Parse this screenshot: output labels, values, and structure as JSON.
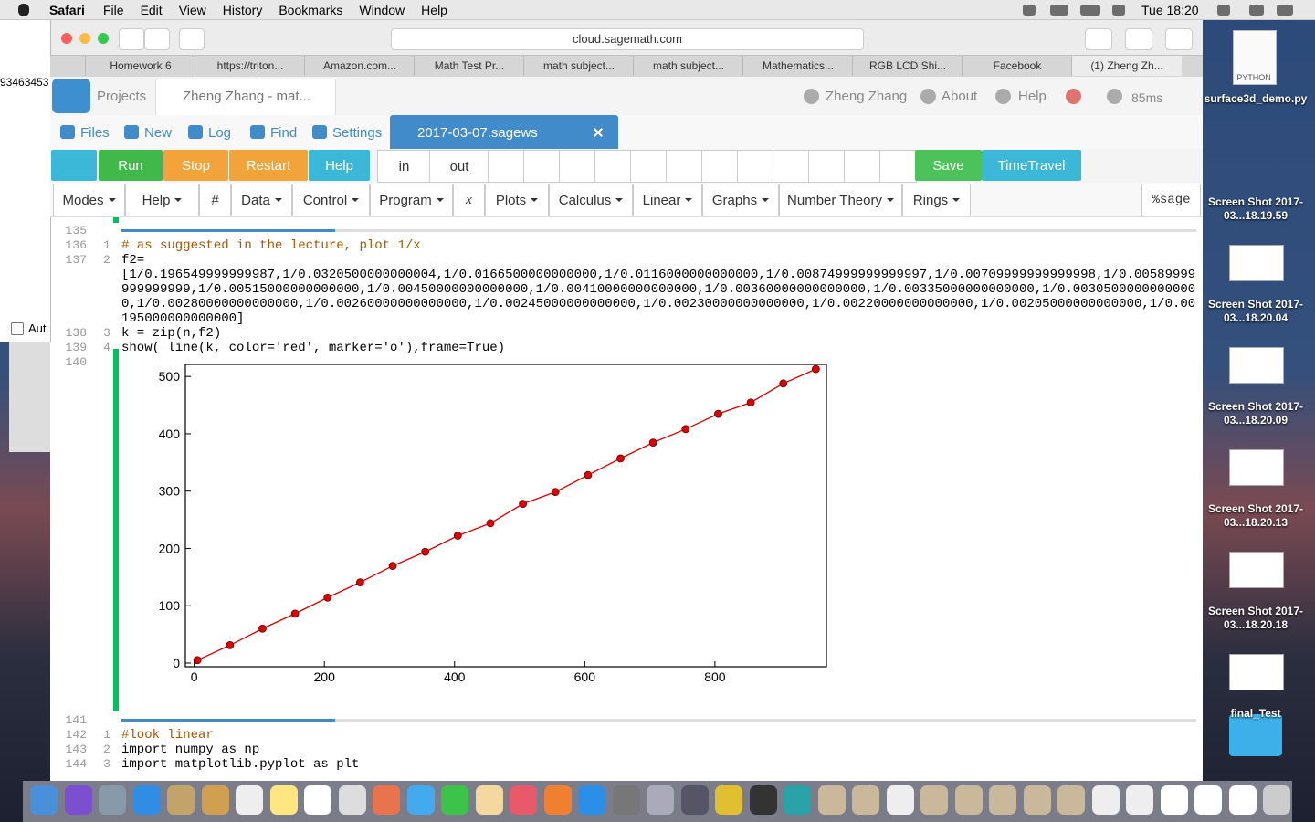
{
  "menubar": {
    "app": "Safari",
    "menus": [
      "File",
      "Edit",
      "View",
      "History",
      "Bookmarks",
      "Window",
      "Help"
    ],
    "clock": "Tue 18:20"
  },
  "left_window": {
    "text": "93463453",
    "checkbox": "Aut"
  },
  "browser": {
    "url": "cloud.sagemath.com",
    "tabs": [
      "Homework 6",
      "https://triton...",
      "Amazon.com...",
      "Math Test Pr...",
      "math subject...",
      "math subject...",
      "Mathematics...",
      "RGB LCD Shi...",
      "Facebook",
      "(1) Zheng Zh..."
    ]
  },
  "sage": {
    "projects": "Projects",
    "project_tab": "Zheng Zhang - mat...",
    "user": "Zheng Zhang",
    "about": "About",
    "help": "Help",
    "ping": "85ms",
    "nav": [
      "Files",
      "New",
      "Log",
      "Find",
      "Settings"
    ],
    "file_tab": "2017-03-07.sagews",
    "toolbar": {
      "run": "Run",
      "stop": "Stop",
      "restart": "Restart",
      "help": "Help",
      "in": "in",
      "out": "out",
      "save": "Save",
      "timetravel": "TimeTravel"
    },
    "menus": [
      "Modes",
      "Help",
      "#",
      "Data",
      "Control",
      "Program",
      "x",
      "Plots",
      "Calculus",
      "Linear",
      "Graphs",
      "Number Theory",
      "Rings"
    ],
    "mode": "%sage"
  },
  "cells": [
    {
      "marker_no": 135,
      "lines": [
        {
          "no": 136,
          "ln": 1,
          "text": "# as suggested in the lecture, plot 1/x"
        },
        {
          "no": 137,
          "ln": 2,
          "text": "f2="
        },
        {
          "text": "[1/0.196549999999987,1/0.0320500000000004,1/0.0166500000000000,1/0.0116000000000000,1/0.00874999999999997,1/0.00709999999999998,1/0.00589999999999999,1/0.00515000000000000,1/0.00450000000000000,1/0.00410000000000000,1/0.00360000000000000,1/0.00335000000000000,1/0.00305000000000000,1/0.00280000000000000,1/0.00260000000000000,1/0.00245000000000000,1/0.00230000000000000,1/0.00220000000000000,1/0.00205000000000000,1/0.00195000000000000]"
        },
        {
          "no": 138,
          "ln": 3,
          "text": "k = zip(n,f2)"
        },
        {
          "no": 139,
          "ln": 4,
          "text": "show( line(k, color='red', marker='o'),frame=True)"
        }
      ],
      "output_no": 140
    },
    {
      "marker_no": 141,
      "lines": [
        {
          "no": 142,
          "ln": 1,
          "text": "#look linear"
        },
        {
          "no": 143,
          "ln": 2,
          "text": "import numpy as np"
        },
        {
          "no": 144,
          "ln": 3,
          "text": "import matplotlib.pyplot as plt"
        }
      ]
    }
  ],
  "desktop": {
    "python_icon": "PYTHON",
    "icons": [
      "surface3d_demo.py",
      "Screen Shot 2017-03...18.19.59",
      "Screen Shot 2017-03...18.20.04",
      "Screen Shot 2017-03...18.20.09",
      "Screen Shot 2017-03...18.20.13",
      "Screen Shot 2017-03...18.20.18",
      "final_Test"
    ]
  },
  "chart_data": {
    "type": "line",
    "x": [
      5,
      55,
      105,
      155,
      205,
      255,
      305,
      355,
      405,
      455,
      505,
      555,
      605,
      655,
      705,
      755,
      805,
      855,
      905,
      955
    ],
    "values": [
      5.1,
      31.2,
      60.1,
      86.2,
      114.3,
      140.8,
      169.5,
      194.2,
      222.2,
      243.9,
      277.8,
      298.5,
      327.9,
      357.1,
      384.6,
      408.2,
      434.8,
      454.5,
      487.8,
      512.8
    ],
    "color": "#e00000",
    "marker": "o",
    "frame": true,
    "grid": false,
    "xlim": [
      -13.5,
      971.3
    ],
    "ylim": [
      -6.4,
      521
    ],
    "xticks": [
      0,
      200,
      400,
      600,
      800
    ],
    "yticks": [
      0,
      100,
      200,
      300,
      400,
      500
    ]
  }
}
